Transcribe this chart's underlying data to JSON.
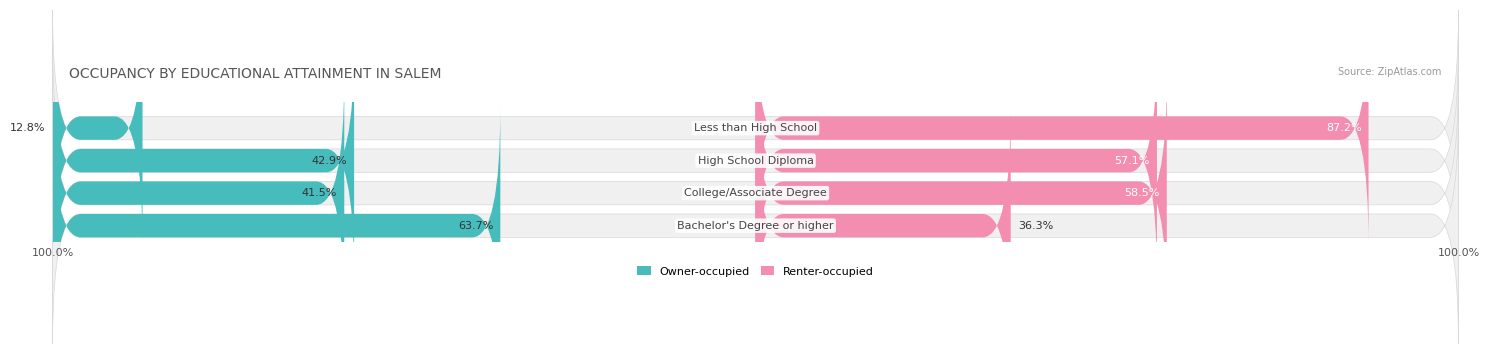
{
  "title": "OCCUPANCY BY EDUCATIONAL ATTAINMENT IN SALEM",
  "source": "Source: ZipAtlas.com",
  "categories": [
    "Less than High School",
    "High School Diploma",
    "College/Associate Degree",
    "Bachelor's Degree or higher"
  ],
  "owner_pct": [
    12.8,
    42.9,
    41.5,
    63.7
  ],
  "renter_pct": [
    87.2,
    57.1,
    58.5,
    36.3
  ],
  "owner_color": "#47BCBC",
  "renter_color": "#F48EB0",
  "bg_color": "#ffffff",
  "bar_bg_color": "#f0f0f0",
  "row_sep_color": "#d8d8d8",
  "title_fontsize": 10,
  "label_fontsize": 8,
  "cat_fontsize": 8,
  "bar_height": 0.72,
  "x_left_label": "100.0%",
  "x_right_label": "100.0%"
}
